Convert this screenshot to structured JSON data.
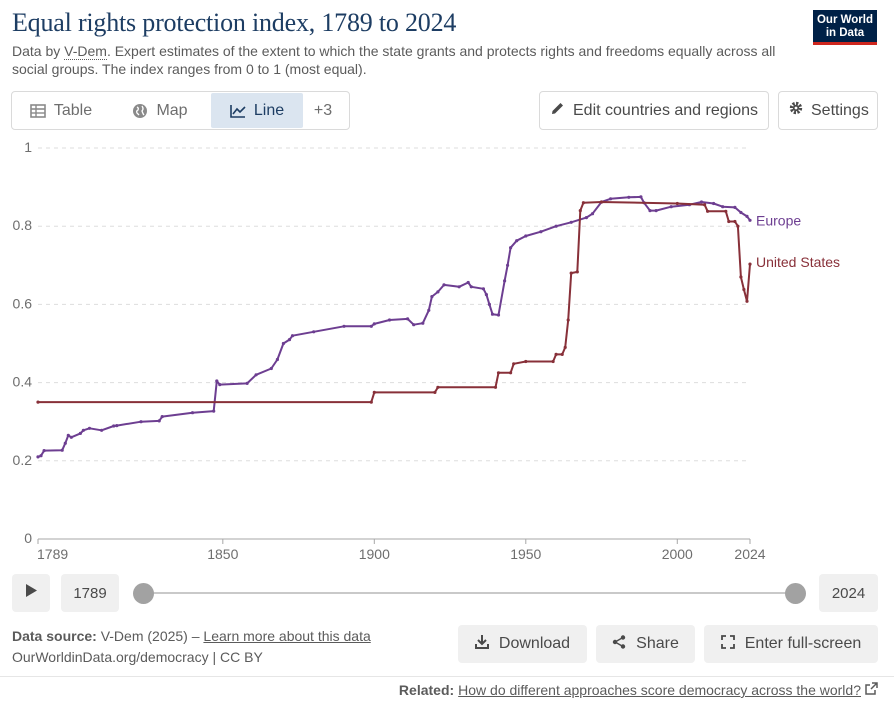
{
  "header": {
    "title": "Equal rights protection index, 1789 to 2024",
    "subtitle_pre": "Data by ",
    "subtitle_link": "V-Dem",
    "subtitle_post": ". Expert estimates of the extent to which the state grants and protects rights and freedoms equally across all social groups. The index ranges from 0 to 1 (most equal).",
    "logo_line1": "Our World",
    "logo_line2": "in Data"
  },
  "tabs": [
    {
      "label": "Table",
      "icon": "table-icon"
    },
    {
      "label": "Map",
      "icon": "globe-icon"
    },
    {
      "label": "Line",
      "icon": "line-chart-icon",
      "active": true
    },
    {
      "label": "+3"
    }
  ],
  "controls": {
    "edit_label": "Edit countries and regions",
    "settings_label": "Settings"
  },
  "chart_data": {
    "type": "line",
    "title": "",
    "xlabel": "",
    "ylabel": "",
    "xlim": [
      1789,
      2024
    ],
    "ylim": [
      0,
      1
    ],
    "x_ticks": [
      1789,
      1850,
      1900,
      1950,
      2000,
      2024
    ],
    "y_ticks": [
      0,
      0.2,
      0.4,
      0.6,
      0.8,
      1
    ],
    "y_tick_labels": [
      "0",
      "0.2",
      "0.4",
      "0.6",
      "0.8",
      "1"
    ],
    "grid": "horizontal dashed",
    "legend": "line-end labels",
    "series": [
      {
        "name": "Europe",
        "color": "#6d3e91",
        "points": [
          [
            1789,
            0.21
          ],
          [
            1790,
            0.213
          ],
          [
            1791,
            0.226
          ],
          [
            1797,
            0.227
          ],
          [
            1798,
            0.245
          ],
          [
            1799,
            0.265
          ],
          [
            1800,
            0.26
          ],
          [
            1803,
            0.27
          ],
          [
            1804,
            0.278
          ],
          [
            1806,
            0.283
          ],
          [
            1810,
            0.278
          ],
          [
            1814,
            0.289
          ],
          [
            1815,
            0.29
          ],
          [
            1823,
            0.3
          ],
          [
            1829,
            0.302
          ],
          [
            1830,
            0.313
          ],
          [
            1840,
            0.323
          ],
          [
            1847,
            0.327
          ],
          [
            1848,
            0.404
          ],
          [
            1849,
            0.395
          ],
          [
            1858,
            0.398
          ],
          [
            1861,
            0.42
          ],
          [
            1866,
            0.436
          ],
          [
            1868,
            0.459
          ],
          [
            1870,
            0.5
          ],
          [
            1872,
            0.51
          ],
          [
            1873,
            0.52
          ],
          [
            1880,
            0.53
          ],
          [
            1890,
            0.544
          ],
          [
            1899,
            0.544
          ],
          [
            1900,
            0.55
          ],
          [
            1905,
            0.56
          ],
          [
            1911,
            0.563
          ],
          [
            1913,
            0.548
          ],
          [
            1916,
            0.552
          ],
          [
            1918,
            0.585
          ],
          [
            1919,
            0.62
          ],
          [
            1921,
            0.632
          ],
          [
            1923,
            0.65
          ],
          [
            1928,
            0.645
          ],
          [
            1931,
            0.656
          ],
          [
            1932,
            0.645
          ],
          [
            1936,
            0.64
          ],
          [
            1937,
            0.625
          ],
          [
            1938,
            0.6
          ],
          [
            1939,
            0.575
          ],
          [
            1941,
            0.573
          ],
          [
            1943,
            0.66
          ],
          [
            1944,
            0.7
          ],
          [
            1945,
            0.745
          ],
          [
            1947,
            0.763
          ],
          [
            1950,
            0.775
          ],
          [
            1955,
            0.786
          ],
          [
            1960,
            0.8
          ],
          [
            1965,
            0.81
          ],
          [
            1970,
            0.822
          ],
          [
            1972,
            0.832
          ],
          [
            1975,
            0.862
          ],
          [
            1978,
            0.87
          ],
          [
            1984,
            0.874
          ],
          [
            1988,
            0.875
          ],
          [
            1989,
            0.86
          ],
          [
            1991,
            0.84
          ],
          [
            1993,
            0.84
          ],
          [
            1998,
            0.85
          ],
          [
            2004,
            0.855
          ],
          [
            2008,
            0.862
          ],
          [
            2012,
            0.858
          ],
          [
            2015,
            0.85
          ],
          [
            2019,
            0.848
          ],
          [
            2021,
            0.835
          ],
          [
            2023,
            0.825
          ],
          [
            2024,
            0.815
          ]
        ]
      },
      {
        "name": "United States",
        "color": "#883039",
        "points": [
          [
            1789,
            0.35
          ],
          [
            1899,
            0.35
          ],
          [
            1900,
            0.375
          ],
          [
            1920,
            0.375
          ],
          [
            1921,
            0.388
          ],
          [
            1940,
            0.388
          ],
          [
            1941,
            0.425
          ],
          [
            1945,
            0.425
          ],
          [
            1946,
            0.448
          ],
          [
            1950,
            0.454
          ],
          [
            1959,
            0.454
          ],
          [
            1960,
            0.472
          ],
          [
            1962,
            0.472
          ],
          [
            1963,
            0.49
          ],
          [
            1964,
            0.56
          ],
          [
            1965,
            0.68
          ],
          [
            1967,
            0.683
          ],
          [
            1968,
            0.84
          ],
          [
            1969,
            0.86
          ],
          [
            1975,
            0.862
          ],
          [
            2000,
            0.858
          ],
          [
            2009,
            0.855
          ],
          [
            2010,
            0.838
          ],
          [
            2016,
            0.838
          ],
          [
            2017,
            0.812
          ],
          [
            2019,
            0.812
          ],
          [
            2020,
            0.8
          ],
          [
            2021,
            0.67
          ],
          [
            2022,
            0.638
          ],
          [
            2023,
            0.608
          ],
          [
            2024,
            0.703
          ]
        ]
      }
    ]
  },
  "timeline": {
    "start": "1789",
    "end": "2024"
  },
  "footer": {
    "source_label": "Data source:",
    "source_value": "V-Dem (2025) – ",
    "source_link": "Learn more about this data",
    "url": "OurWorldinData.org/democracy | CC BY",
    "download_label": "Download",
    "share_label": "Share",
    "fullscreen_label": "Enter full-screen",
    "related_label": "Related:",
    "related_link": "How do different approaches score democracy across the world?"
  }
}
